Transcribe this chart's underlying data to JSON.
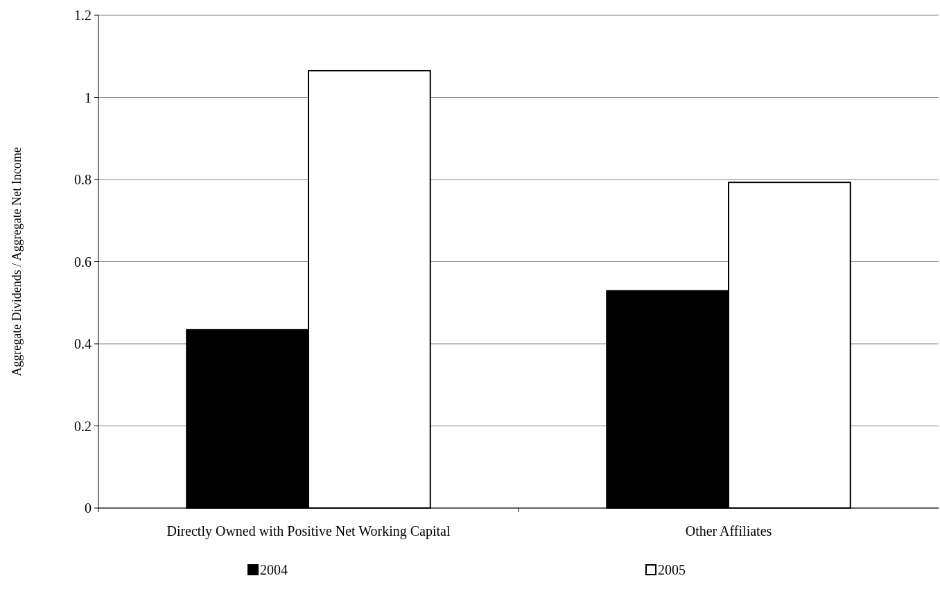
{
  "chart_data": {
    "type": "bar",
    "ylabel": "Aggregate Dividends / Aggregate Net Income",
    "categories": [
      "Directly Owned with Positive Net Working Capital",
      "Other Affiliates"
    ],
    "series": [
      {
        "name": "2004",
        "color": "#000000",
        "values": [
          0.434,
          0.529
        ]
      },
      {
        "name": "2005",
        "color": "#ffffff",
        "values": [
          1.065,
          0.793
        ]
      }
    ],
    "ylim": [
      0,
      1.2
    ],
    "yticks": [
      0,
      0.2,
      0.4,
      0.6,
      0.8,
      1,
      1.2
    ],
    "grid": "y",
    "legend": "bottom"
  }
}
